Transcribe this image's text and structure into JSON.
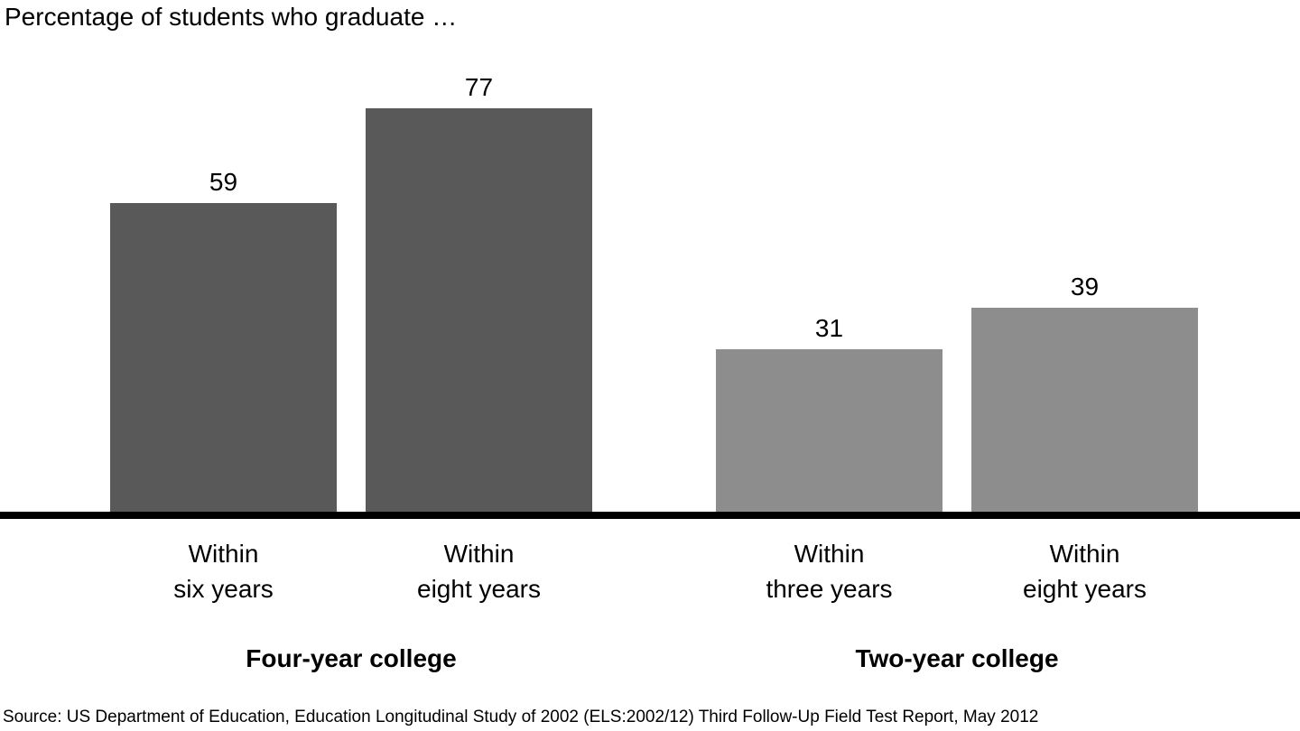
{
  "source": "Source: US Department of Education, Education Longitudinal Study of 2002 (ELS:2002/12) Third Follow-Up Field Test Report, May 2012",
  "colors": {
    "background": "#FFFFFF",
    "text": "#000000",
    "axis_line": "#000000",
    "four_year_bar": "#595959",
    "two_year_bar": "#8D8D8D"
  },
  "chart_data": {
    "type": "bar",
    "title": "Percentage of students who graduate …",
    "ylabel": "",
    "xlabel": "",
    "ylim": [
      0,
      100
    ],
    "y_axis_visible": false,
    "x_axis_line": true,
    "grid": false,
    "legend": false,
    "value_labels_position": "above-bar",
    "groups": [
      {
        "label": "Four-year college",
        "color": "#595959"
      },
      {
        "label": "Two-year college",
        "color": "#8D8D8D"
      }
    ],
    "categories": [
      "Within six years",
      "Within eight years",
      "Within three years",
      "Within eight years"
    ],
    "values": [
      59,
      77,
      31,
      39
    ],
    "bars": [
      {
        "value": 59,
        "tick_line1": "Within",
        "tick_line2": "six years",
        "group": 0
      },
      {
        "value": 77,
        "tick_line1": "Within",
        "tick_line2": "eight years",
        "group": 0
      },
      {
        "value": 31,
        "tick_line1": "Within",
        "tick_line2": "three years",
        "group": 1
      },
      {
        "value": 39,
        "tick_line1": "Within",
        "tick_line2": "eight years",
        "group": 1
      }
    ]
  }
}
